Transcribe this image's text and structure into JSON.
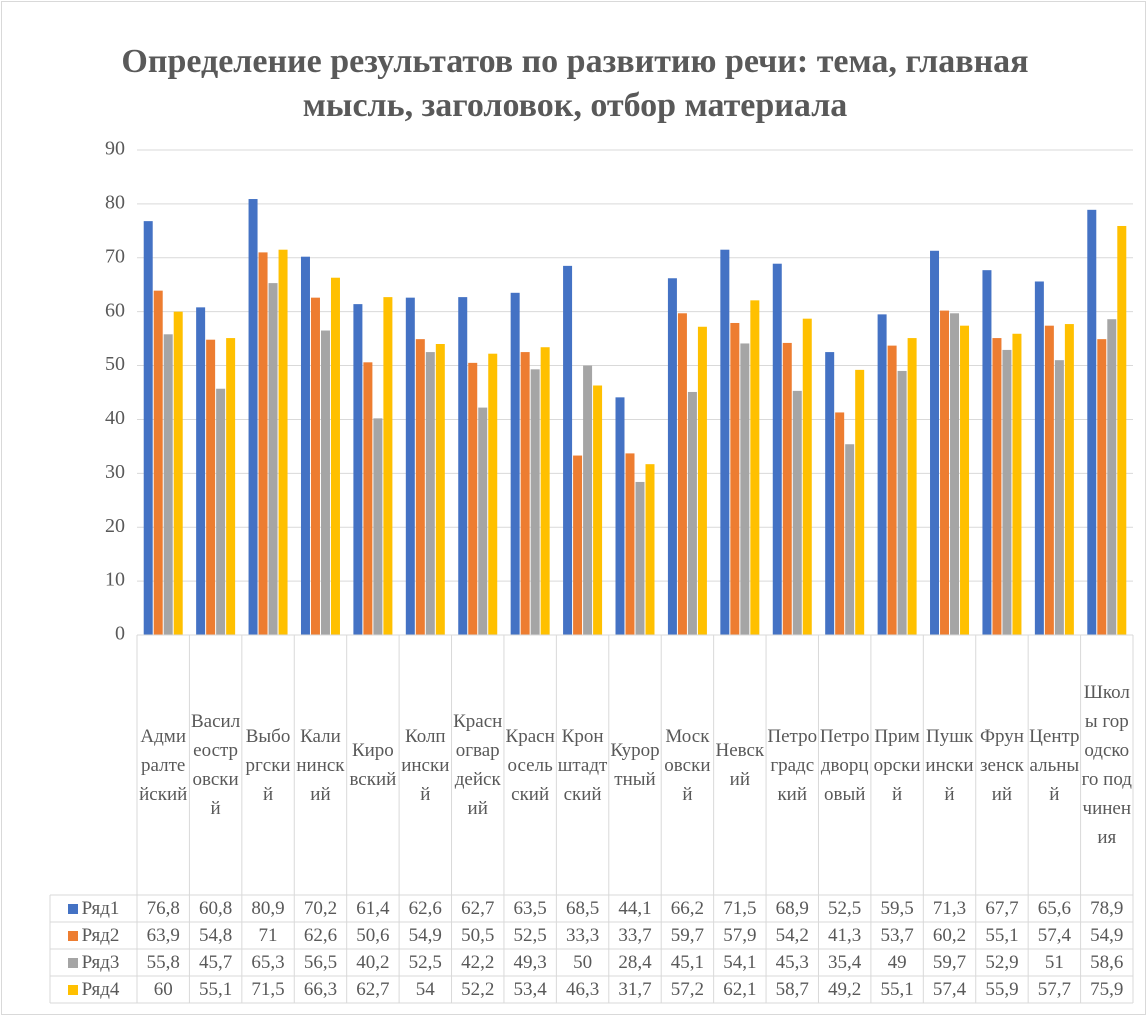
{
  "chart_data": {
    "type": "bar",
    "title": "Определение результатов по развитию речи: тема, главная мысль, заголовок, отбор материала",
    "categories": [
      "Адмиралтейский",
      "Василеостровский",
      "Выборгский",
      "Калининский",
      "Кировский",
      "Колпинский",
      "Красногвардейский",
      "Красносельский",
      "Кронштадтский",
      "Курортный",
      "Московский",
      "Невский",
      "Петроградский",
      "Петродворцовый",
      "Приморский",
      "Пушкинский",
      "Фрунзенский",
      "Центральный",
      "Школы городского подчинения"
    ],
    "series": [
      {
        "name": "Ряд1",
        "color": "#4472c4",
        "values": [
          76.8,
          60.8,
          80.9,
          70.2,
          61.4,
          62.6,
          62.7,
          63.5,
          68.5,
          44.1,
          66.2,
          71.5,
          68.9,
          52.5,
          59.5,
          71.3,
          67.7,
          65.6,
          78.9
        ],
        "value_labels": [
          "76,8",
          "60,8",
          "80,9",
          "70,2",
          "61,4",
          "62,6",
          "62,7",
          "63,5",
          "68,5",
          "44,1",
          "66,2",
          "71,5",
          "68,9",
          "52,5",
          "59,5",
          "71,3",
          "67,7",
          "65,6",
          "78,9"
        ]
      },
      {
        "name": "Ряд2",
        "color": "#ed7d31",
        "values": [
          63.9,
          54.8,
          71,
          62.6,
          50.6,
          54.9,
          50.5,
          52.5,
          33.3,
          33.7,
          59.7,
          57.9,
          54.2,
          41.3,
          53.7,
          60.2,
          55.1,
          57.4,
          54.9
        ],
        "value_labels": [
          "63,9",
          "54,8",
          "71",
          "62,6",
          "50,6",
          "54,9",
          "50,5",
          "52,5",
          "33,3",
          "33,7",
          "59,7",
          "57,9",
          "54,2",
          "41,3",
          "53,7",
          "60,2",
          "55,1",
          "57,4",
          "54,9"
        ]
      },
      {
        "name": "Ряд3",
        "color": "#a5a5a5",
        "values": [
          55.8,
          45.7,
          65.3,
          56.5,
          40.2,
          52.5,
          42.2,
          49.3,
          50,
          28.4,
          45.1,
          54.1,
          45.3,
          35.4,
          49,
          59.7,
          52.9,
          51,
          58.6
        ],
        "value_labels": [
          "55,8",
          "45,7",
          "65,3",
          "56,5",
          "40,2",
          "52,5",
          "42,2",
          "49,3",
          "50",
          "28,4",
          "45,1",
          "54,1",
          "45,3",
          "35,4",
          "49",
          "59,7",
          "52,9",
          "51",
          "58,6"
        ]
      },
      {
        "name": "Ряд4",
        "color": "#ffc000",
        "values": [
          60,
          55.1,
          71.5,
          66.3,
          62.7,
          54,
          52.2,
          53.4,
          46.3,
          31.7,
          57.2,
          62.1,
          58.7,
          49.2,
          55.1,
          57.4,
          55.9,
          57.7,
          75.9
        ],
        "value_labels": [
          "60",
          "55,1",
          "71,5",
          "66,3",
          "62,7",
          "54",
          "52,2",
          "53,4",
          "46,3",
          "31,7",
          "57,2",
          "62,1",
          "58,7",
          "49,2",
          "55,1",
          "57,4",
          "55,9",
          "57,7",
          "75,9"
        ]
      }
    ],
    "ylim": [
      0,
      90
    ],
    "yticks": [
      0,
      10,
      20,
      30,
      40,
      50,
      60,
      70,
      80,
      90
    ],
    "grid": true
  }
}
